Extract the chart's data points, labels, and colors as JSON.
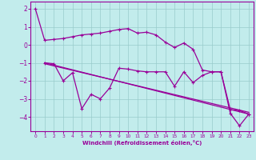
{
  "xlabel": "Windchill (Refroidissement éolien,°C)",
  "xlim": [
    -0.5,
    23.5
  ],
  "ylim": [
    -4.8,
    2.4
  ],
  "yticks": [
    2,
    1,
    0,
    -1,
    -2,
    -3,
    -4
  ],
  "xticks": [
    0,
    1,
    2,
    3,
    4,
    5,
    6,
    7,
    8,
    9,
    10,
    11,
    12,
    13,
    14,
    15,
    16,
    17,
    18,
    19,
    20,
    21,
    22,
    23
  ],
  "bg_color": "#c2ecec",
  "line_color": "#990099",
  "grid_color": "#99cccc",
  "line1_x": [
    0,
    1,
    2,
    3,
    4,
    5,
    6,
    7,
    8,
    9,
    10,
    11,
    12,
    13,
    14,
    15,
    16,
    17,
    18,
    19,
    20,
    21,
    22,
    23
  ],
  "line1_y": [
    2.0,
    0.25,
    0.3,
    0.35,
    0.45,
    0.55,
    0.6,
    0.65,
    0.75,
    0.85,
    0.9,
    0.65,
    0.7,
    0.55,
    0.15,
    -0.15,
    0.1,
    -0.25,
    -1.4,
    -1.5,
    -1.5,
    -3.6,
    -3.65,
    -3.85
  ],
  "line2_x": [
    1,
    2,
    3,
    4,
    5,
    6,
    7,
    8,
    9,
    10,
    11,
    12,
    13,
    14,
    15,
    16,
    17,
    18,
    19,
    20,
    21,
    22,
    23
  ],
  "line2_y": [
    -1.0,
    -1.05,
    -2.0,
    -1.55,
    -3.55,
    -2.75,
    -3.0,
    -2.4,
    -1.3,
    -1.35,
    -1.45,
    -1.5,
    -1.5,
    -1.5,
    -2.3,
    -1.5,
    -2.1,
    -1.7,
    -1.5,
    -1.5,
    -3.8,
    -4.5,
    -3.85
  ],
  "line3_x": [
    1,
    23
  ],
  "line3_y": [
    -1.0,
    -3.85
  ],
  "line4_x": [
    1,
    23
  ],
  "line4_y": [
    -1.05,
    -3.75
  ]
}
